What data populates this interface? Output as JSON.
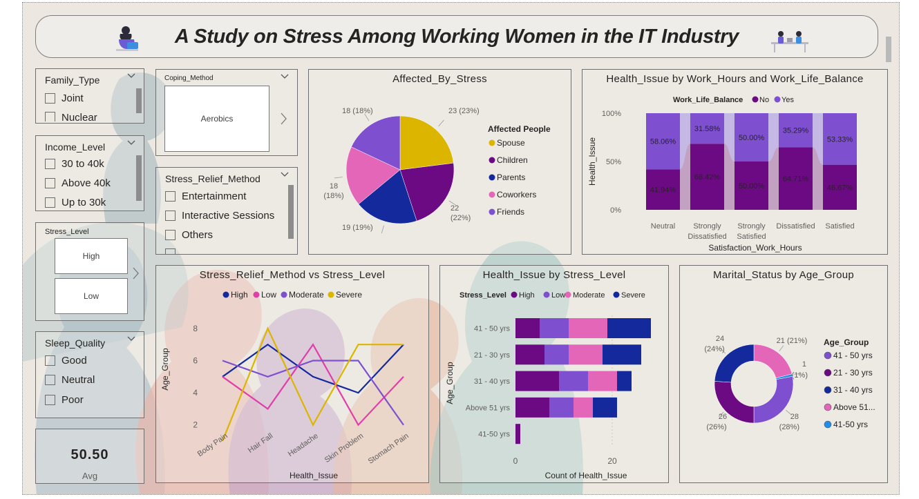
{
  "header": {
    "title": "A Study on Stress Among Working Women in the IT Industry"
  },
  "colors": {
    "dark_purple": "#6b0a82",
    "purple": "#7e4fcf",
    "pink": "#e466b8",
    "gold": "#dbb500",
    "navy": "#13299c",
    "blue": "#1f8ee8",
    "background": "#ece8e1"
  },
  "icons": {
    "header_left": "woman-at-laptop-icon",
    "header_right": "meeting-illustration-icon",
    "chevron": "chevron-down-icon",
    "next": "chevron-right-icon"
  },
  "slicers": {
    "family_type": {
      "title": "Family_Type",
      "items": [
        "Joint",
        "Nuclear"
      ]
    },
    "income_level": {
      "title": "Income_Level",
      "items": [
        "30 to 40k",
        "Above 40k",
        "Up to 30k"
      ]
    },
    "stress_level": {
      "title": "Stress_Level",
      "tiles": [
        "High",
        "Low"
      ]
    },
    "sleep_quality": {
      "title": "Sleep_Quality",
      "items": [
        "Good",
        "Neutral",
        "Poor"
      ]
    },
    "coping_method": {
      "title": "Coping_Method",
      "tiles": [
        "Aerobics"
      ]
    },
    "stress_relief_method": {
      "title": "Stress_Relief_Method",
      "items": [
        "Entertainment",
        "Interactive Sessions",
        "Others"
      ]
    }
  },
  "kpi_card": {
    "value": "50.50",
    "label": "Avg"
  },
  "chart_data": [
    {
      "id": "affected_by_stress",
      "type": "pie",
      "title": "Affected_By_Stress",
      "legend_title": "Affected People",
      "legend_position": "right",
      "slices": [
        {
          "name": "Spouse",
          "value": 23,
          "label": "23 (23%)",
          "color": "#dbb500"
        },
        {
          "name": "Children",
          "value": 22,
          "label": "22 (22%)",
          "color": "#6b0a82"
        },
        {
          "name": "Parents",
          "value": 19,
          "label": "19 (19%)",
          "color": "#13299c"
        },
        {
          "name": "Coworkers",
          "value": 18,
          "label": "18 (18%)",
          "color": "#e466b8"
        },
        {
          "name": "Friends",
          "value": 18,
          "label": "18 (18%)",
          "color": "#7e4fcf"
        }
      ]
    },
    {
      "id": "health_issue_by_work_hours",
      "type": "bar",
      "stacking": "100%",
      "title": "Health_Issue by Work_Hours and Work_Life_Balance",
      "legend_title": "Work_Life_Balance",
      "legend_position": "top",
      "xlabel": "Satisfaction_Work_Hours",
      "ylabel": "Health_Issue",
      "y_ticks": [
        "0%",
        "50%",
        "100%"
      ],
      "categories": [
        "Neutral",
        "Strongly Dissatisfied",
        "Strongly Satisfied",
        "Dissatisfied",
        "Satisfied"
      ],
      "series": [
        {
          "name": "No",
          "color": "#6b0a82",
          "values": [
            41.94,
            68.42,
            50.0,
            64.71,
            46.67
          ],
          "labels": [
            "41.94%",
            "68.42%",
            "50.00%",
            "64.71%",
            "46.67%"
          ]
        },
        {
          "name": "Yes",
          "color": "#7e4fcf",
          "values": [
            58.06,
            31.58,
            50.0,
            35.29,
            53.33
          ],
          "labels": [
            "58.06%",
            "31.58%",
            "50.00%",
            "35.29%",
            "53.33%"
          ]
        }
      ]
    },
    {
      "id": "stress_relief_vs_stress_level",
      "type": "line",
      "title": "Stress_Relief_Method vs Stress_Level",
      "legend_position": "top",
      "xlabel": "Health_Issue",
      "ylabel": "Age_Group",
      "ylim": [
        1,
        8
      ],
      "y_ticks": [
        2,
        4,
        6,
        8
      ],
      "categories": [
        "Body Pain",
        "Hair Fall",
        "Headache",
        "Skin Problem",
        "Stomach Pain"
      ],
      "series": [
        {
          "name": "High",
          "color": "#13299c",
          "values": [
            5,
            7,
            5,
            4,
            7
          ]
        },
        {
          "name": "Low",
          "color": "#e03ea8",
          "values": [
            5,
            3,
            7,
            2,
            5
          ]
        },
        {
          "name": "Moderate",
          "color": "#7e4fcf",
          "values": [
            6,
            5,
            6,
            6,
            2
          ]
        },
        {
          "name": "Severe",
          "color": "#dbb500",
          "values": [
            1,
            8,
            2,
            7,
            7
          ]
        }
      ]
    },
    {
      "id": "health_issue_by_stress_level",
      "type": "bar",
      "orientation": "horizontal",
      "stacking": "stacked",
      "title": "Health_Issue by Stress_Level",
      "legend_title": "Stress_Level",
      "legend_position": "top",
      "xlabel": "Count of Health_Issue",
      "ylabel": "Age_Group",
      "x_ticks": [
        0,
        20
      ],
      "categories": [
        "41 - 50 yrs",
        "21 - 30 yrs",
        "31 - 40 yrs",
        "Above 51 yrs",
        "41-50 yrs"
      ],
      "series": [
        {
          "name": "High",
          "color": "#6b0a82",
          "values": [
            5,
            6,
            9,
            7,
            1
          ]
        },
        {
          "name": "Low",
          "color": "#7e4fcf",
          "values": [
            6,
            5,
            6,
            5,
            0
          ]
        },
        {
          "name": "Moderate",
          "color": "#e466b8",
          "values": [
            8,
            7,
            6,
            4,
            0
          ]
        },
        {
          "name": "Severe",
          "color": "#13299c",
          "values": [
            9,
            8,
            3,
            5,
            0
          ]
        }
      ]
    },
    {
      "id": "marital_status_by_age_group",
      "type": "pie",
      "variant": "donut",
      "title": "Marital_Status by Age_Group",
      "legend_title": "Age_Group",
      "legend_position": "right",
      "slices": [
        {
          "name": "41 - 50 yrs",
          "value": 28,
          "label": "28 (28%)",
          "color": "#7e4fcf"
        },
        {
          "name": "21 - 30 yrs",
          "value": 26,
          "label": "26 (26%)",
          "color": "#6b0a82"
        },
        {
          "name": "31 - 40 yrs",
          "value": 24,
          "label": "24 (24%)",
          "color": "#13299c"
        },
        {
          "name": "Above 51...",
          "value": 21,
          "label": "21 (21%)",
          "color": "#e466b8"
        },
        {
          "name": "41-50 yrs",
          "value": 1,
          "label": "1 (1%)",
          "color": "#1f8ee8"
        }
      ]
    }
  ]
}
